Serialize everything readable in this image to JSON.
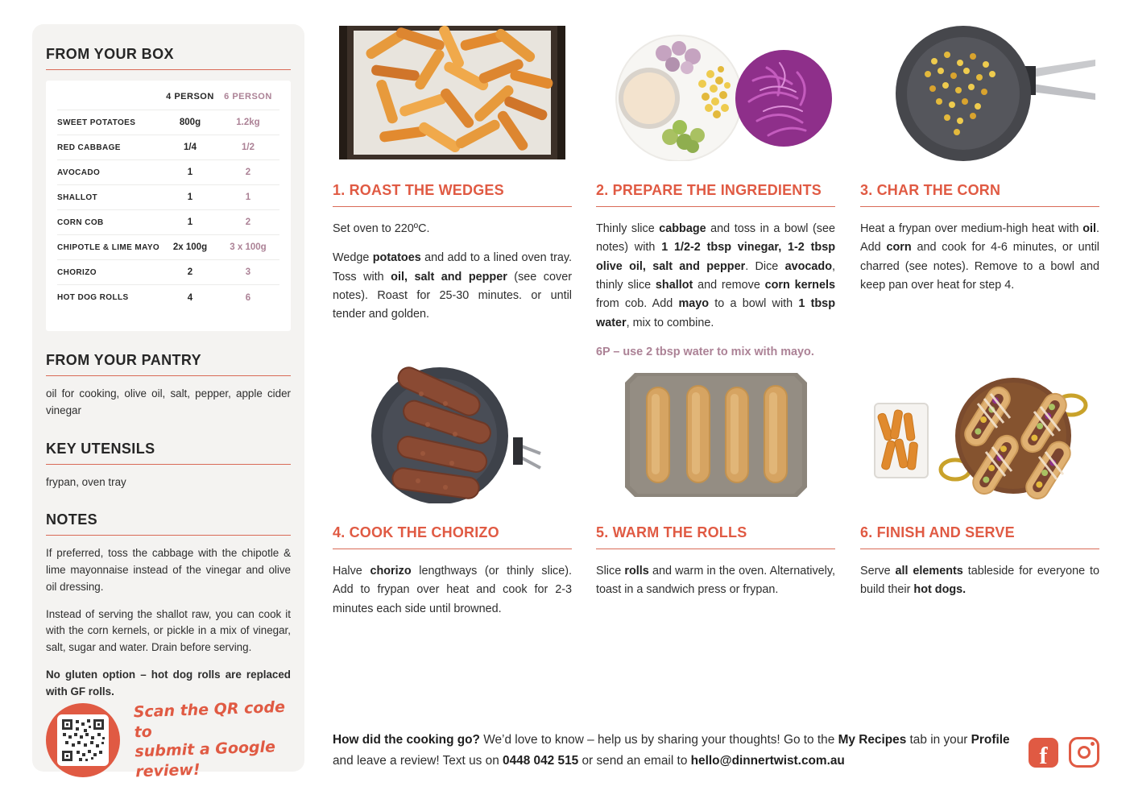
{
  "colors": {
    "accent": "#E05A43",
    "mauve": "#AC8296",
    "panel": "#F4F3F1"
  },
  "sidebar": {
    "box": {
      "title": "FROM YOUR BOX",
      "table": {
        "col_headers": [
          "4 PERSON",
          "6 PERSON"
        ],
        "rows": [
          {
            "label": "SWEET POTATOES",
            "p4": "800g",
            "p6": "1.2kg"
          },
          {
            "label": "RED CABBAGE",
            "p4": "1/4",
            "p6": "1/2"
          },
          {
            "label": "AVOCADO",
            "p4": "1",
            "p6": "2"
          },
          {
            "label": "SHALLOT",
            "p4": "1",
            "p6": "1"
          },
          {
            "label": "CORN COB",
            "p4": "1",
            "p6": "2"
          },
          {
            "label": "CHIPOTLE & LIME MAYO",
            "p4": "2x 100g",
            "p6": "3 x 100g"
          },
          {
            "label": "CHORIZO",
            "p4": "2",
            "p6": "3"
          },
          {
            "label": "HOT DOG ROLLS",
            "p4": "4",
            "p6": "6"
          }
        ]
      }
    },
    "pantry": {
      "title": "FROM YOUR PANTRY",
      "body": "oil for cooking, olive oil, salt, pepper, apple cider vinegar"
    },
    "utensils": {
      "title": "KEY UTENSILS",
      "body": "frypan, oven tray"
    },
    "notes": {
      "title": "NOTES",
      "paragraphs": [
        {
          "text": "If preferred, toss the cabbage with the chipotle & lime mayonnaise instead of the vinegar and olive oil dressing.",
          "bold": false
        },
        {
          "text": "Instead of serving the shallot raw, you can cook it with the corn kernels, or pickle in a mix of vinegar, salt, sugar and water. Drain before serving.",
          "bold": false
        },
        {
          "text": "No gluten option – hot dog rolls are replaced with GF rolls.",
          "bold": true
        }
      ]
    },
    "review": {
      "line1": "Scan the QR code to",
      "line2": "submit a Google review!"
    }
  },
  "steps": [
    {
      "title": "1. ROAST THE WEDGES",
      "photo": "roasted-sweet-potato-wedges-on-tray",
      "paragraphs": [
        [
          {
            "t": "Set oven to 220ºC."
          }
        ],
        [
          {
            "t": "Wedge "
          },
          {
            "t": "potatoes",
            "b": true
          },
          {
            "t": " and add to a lined oven tray. Toss with "
          },
          {
            "t": "oil, salt and pepper",
            "b": true
          },
          {
            "t": " (see cover notes). Roast for 25-30 minutes. or until tender and golden."
          }
        ]
      ],
      "note6p": null
    },
    {
      "title": "2. PREPARE THE INGREDIENTS",
      "photo": "prepared-ingredients-plate-and-cabbage-bowl",
      "paragraphs": [
        [
          {
            "t": "Thinly slice "
          },
          {
            "t": "cabbage",
            "b": true
          },
          {
            "t": " and toss in a bowl (see notes) with "
          },
          {
            "t": "1 1/2-2 tbsp vinegar, 1-2 tbsp olive oil, salt and pepper",
            "b": true
          },
          {
            "t": ". Dice "
          },
          {
            "t": "avocado",
            "b": true
          },
          {
            "t": ", thinly slice "
          },
          {
            "t": "shallot",
            "b": true
          },
          {
            "t": " and remove "
          },
          {
            "t": "corn kernels",
            "b": true
          },
          {
            "t": " from cob. Add "
          },
          {
            "t": "mayo",
            "b": true
          },
          {
            "t": " to a bowl with "
          },
          {
            "t": "1 tbsp water",
            "b": true
          },
          {
            "t": ", mix to combine."
          }
        ]
      ],
      "note6p": "6P – use 2 tbsp water to mix with mayo."
    },
    {
      "title": "3. CHAR THE CORN",
      "photo": "charred-corn-in-frypan",
      "paragraphs": [
        [
          {
            "t": "Heat a frypan over medium-high heat with "
          },
          {
            "t": "oil",
            "b": true
          },
          {
            "t": ". Add "
          },
          {
            "t": "corn",
            "b": true
          },
          {
            "t": " and cook for 4-6 minutes, or until charred (see notes). Remove to a bowl and keep pan over heat for step 4."
          }
        ]
      ],
      "note6p": null
    },
    {
      "title": "4. COOK THE CHORIZO",
      "photo": "chorizo-cooking-in-pan",
      "paragraphs": [
        [
          {
            "t": "Halve "
          },
          {
            "t": "chorizo",
            "b": true
          },
          {
            "t": " lengthways (or thinly slice). Add to frypan over heat and cook for 2-3 minutes each side until browned."
          }
        ]
      ],
      "note6p": null
    },
    {
      "title": "5. WARM THE ROLLS",
      "photo": "hot-dog-rolls-on-tray",
      "paragraphs": [
        [
          {
            "t": "Slice "
          },
          {
            "t": "rolls",
            "b": true
          },
          {
            "t": " and warm in the oven. Alternatively, toast in a sandwich press or frypan."
          }
        ]
      ],
      "note6p": null
    },
    {
      "title": "6. FINISH AND SERVE",
      "photo": "finished-hot-dogs-with-wedges",
      "paragraphs": [
        [
          {
            "t": "Serve "
          },
          {
            "t": "all elements",
            "b": true
          },
          {
            "t": " tableside for everyone to build their "
          },
          {
            "t": "hot dogs.",
            "b": true
          }
        ]
      ],
      "note6p": null
    }
  ],
  "footer": {
    "segments": [
      {
        "t": "How did the cooking go?",
        "b": true
      },
      {
        "t": " We’d love to know – help us by sharing your thoughts! Go to the "
      },
      {
        "t": "My Recipes",
        "b": true
      },
      {
        "t": " tab in your "
      },
      {
        "t": "Profile",
        "b": true
      },
      {
        "t": " and leave a review! Text us on "
      },
      {
        "t": "0448 042 515",
        "b": true,
        "c": true,
        "n": "phone-link"
      },
      {
        "t": "  or send an email to "
      },
      {
        "t": "hello@dinnertwist.com.au",
        "b": true,
        "c": true,
        "n": "email-link"
      }
    ]
  },
  "social": {
    "facebook": "facebook-icon",
    "instagram": "instagram-icon"
  }
}
